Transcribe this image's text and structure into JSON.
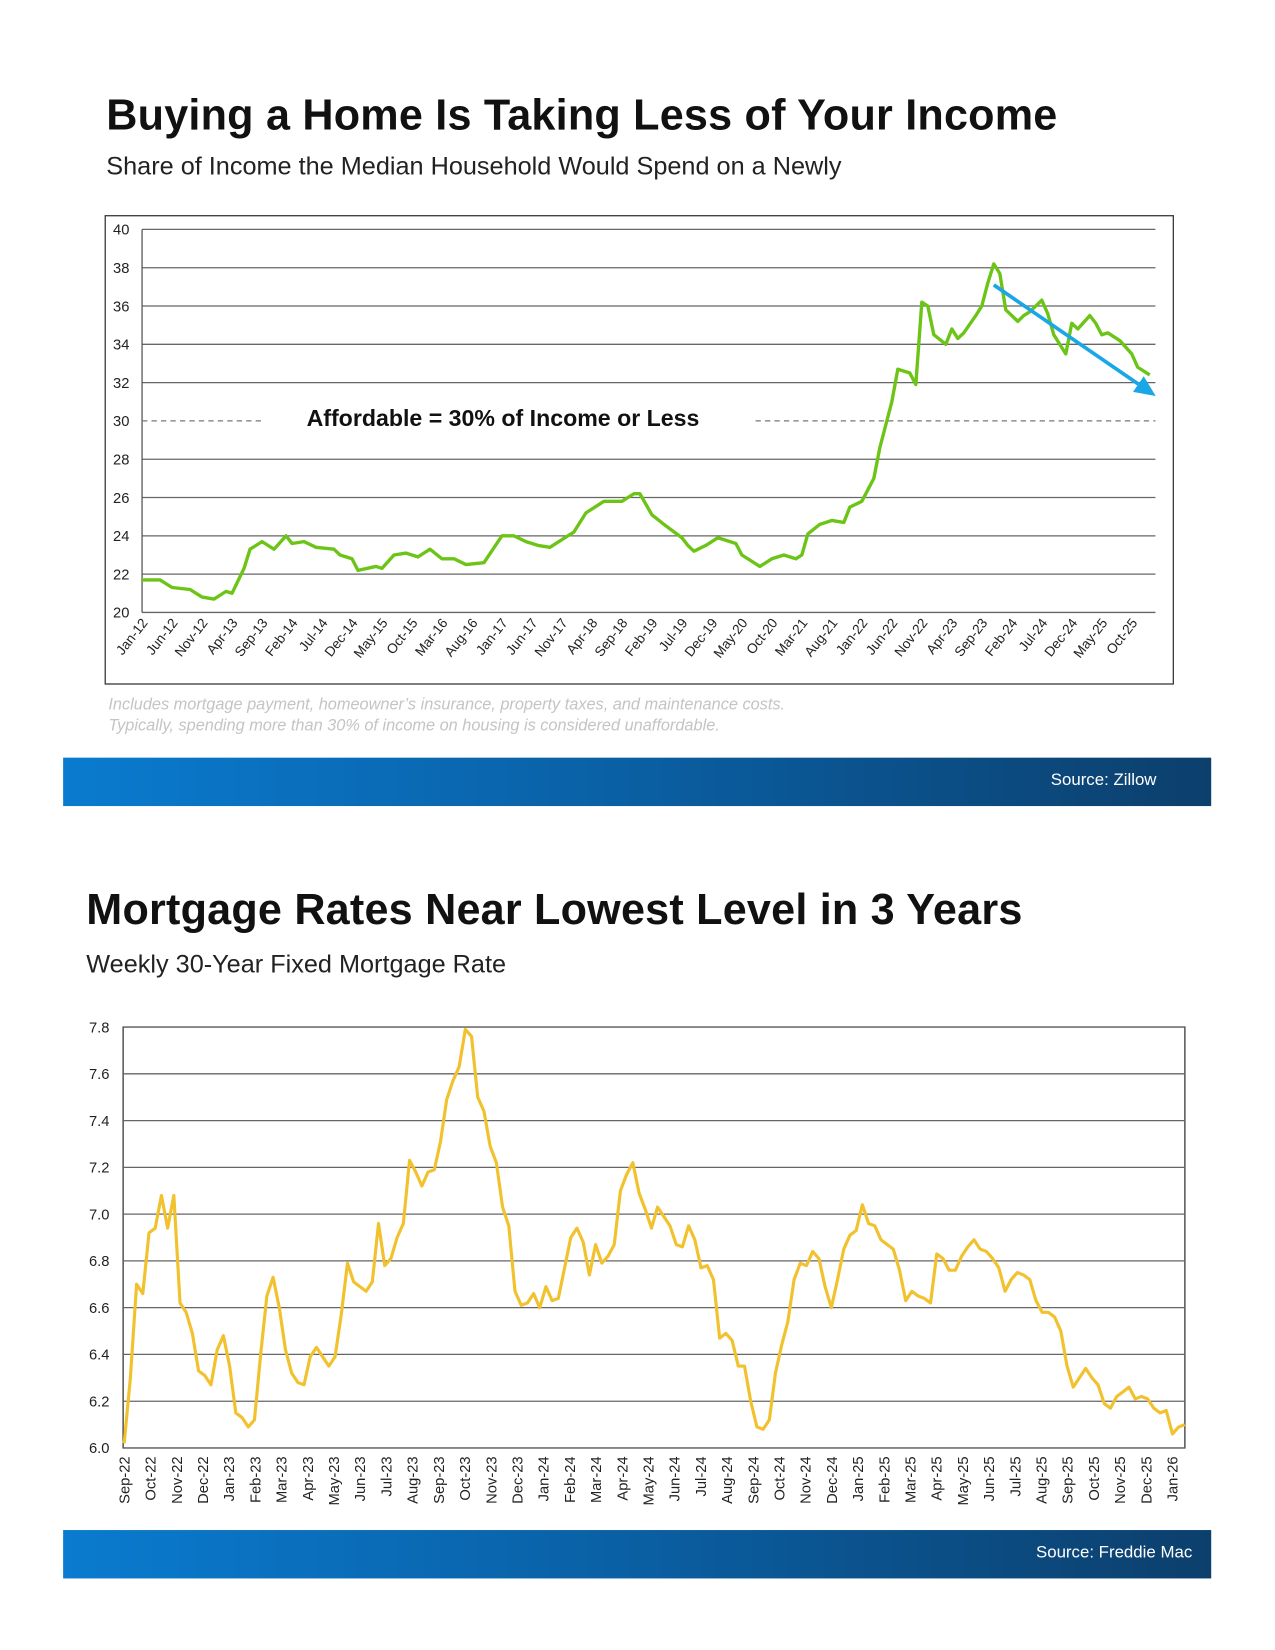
{
  "chart_data": [
    {
      "type": "line",
      "title": "Buying a Home Is Taking Less of Your Income",
      "subtitle": "Share of Income the Median Household Would Spend on a Newly",
      "ylim": [
        20,
        40
      ],
      "y_ticks": [
        "20",
        "22",
        "24",
        "26",
        "28",
        "30",
        "32",
        "34",
        "36",
        "38",
        "40"
      ],
      "x_tick_labels": [
        "Jan-12",
        "Jun-12",
        "Nov-12",
        "Apr-13",
        "Sep-13",
        "Feb-14",
        "Jul-14",
        "Dec-14",
        "May-15",
        "Oct-15",
        "Mar-16",
        "Aug-16",
        "Jan-17",
        "Jun-17",
        "Nov-17",
        "Apr-18",
        "Sep-18",
        "Feb-19",
        "Jul-19",
        "Dec-19",
        "May-20",
        "Oct-20",
        "Mar-21",
        "Aug-21",
        "Jan-22",
        "Jun-22",
        "Nov-22",
        "Apr-23",
        "Sep-23",
        "Feb-24",
        "Jul-24",
        "Dec-24",
        "May-25",
        "Oct-25"
      ],
      "grid": true,
      "line_color": "#6cc417",
      "points": [
        [
          "2012-01",
          21.7
        ],
        [
          "2012-04",
          21.7
        ],
        [
          "2012-06",
          21.3
        ],
        [
          "2012-09",
          21.2
        ],
        [
          "2012-11",
          20.8
        ],
        [
          "2013-01",
          20.7
        ],
        [
          "2013-03",
          21.1
        ],
        [
          "2013-04",
          21.0
        ],
        [
          "2013-06",
          22.3
        ],
        [
          "2013-07",
          23.3
        ],
        [
          "2013-09",
          23.7
        ],
        [
          "2013-11",
          23.3
        ],
        [
          "2014-01",
          24.0
        ],
        [
          "2014-02",
          23.6
        ],
        [
          "2014-04",
          23.7
        ],
        [
          "2014-06",
          23.4
        ],
        [
          "2014-09",
          23.3
        ],
        [
          "2014-10",
          23.0
        ],
        [
          "2014-12",
          22.8
        ],
        [
          "2015-01",
          22.2
        ],
        [
          "2015-04",
          22.4
        ],
        [
          "2015-05",
          22.3
        ],
        [
          "2015-07",
          23.0
        ],
        [
          "2015-09",
          23.1
        ],
        [
          "2015-11",
          22.9
        ],
        [
          "2016-01",
          23.3
        ],
        [
          "2016-03",
          22.8
        ],
        [
          "2016-05",
          22.8
        ],
        [
          "2016-07",
          22.5
        ],
        [
          "2016-10",
          22.6
        ],
        [
          "2017-01",
          24.0
        ],
        [
          "2017-03",
          24.0
        ],
        [
          "2017-05",
          23.7
        ],
        [
          "2017-07",
          23.5
        ],
        [
          "2017-09",
          23.4
        ],
        [
          "2017-12",
          24.0
        ],
        [
          "2018-01",
          24.2
        ],
        [
          "2018-03",
          25.2
        ],
        [
          "2018-06",
          25.8
        ],
        [
          "2018-09",
          25.8
        ],
        [
          "2018-11",
          26.2
        ],
        [
          "2018-12",
          26.2
        ],
        [
          "2019-02",
          25.1
        ],
        [
          "2019-04",
          24.6
        ],
        [
          "2019-07",
          23.9
        ],
        [
          "2019-08",
          23.5
        ],
        [
          "2019-09",
          23.2
        ],
        [
          "2019-11",
          23.5
        ],
        [
          "2020-01",
          23.9
        ],
        [
          "2020-04",
          23.6
        ],
        [
          "2020-05",
          23.0
        ],
        [
          "2020-08",
          22.4
        ],
        [
          "2020-10",
          22.8
        ],
        [
          "2020-12",
          23.0
        ],
        [
          "2021-02",
          22.8
        ],
        [
          "2021-03",
          23.0
        ],
        [
          "2021-04",
          24.1
        ],
        [
          "2021-06",
          24.6
        ],
        [
          "2021-08",
          24.8
        ],
        [
          "2021-10",
          24.7
        ],
        [
          "2021-11",
          25.5
        ],
        [
          "2022-01",
          25.8
        ],
        [
          "2022-03",
          27.0
        ],
        [
          "2022-04",
          28.6
        ],
        [
          "2022-06",
          31.0
        ],
        [
          "2022-07",
          32.7
        ],
        [
          "2022-09",
          32.5
        ],
        [
          "2022-10",
          31.9
        ],
        [
          "2022-11",
          36.2
        ],
        [
          "2022-12",
          36.0
        ],
        [
          "2023-01",
          34.5
        ],
        [
          "2023-03",
          34.0
        ],
        [
          "2023-04",
          34.8
        ],
        [
          "2023-05",
          34.3
        ],
        [
          "2023-06",
          34.6
        ],
        [
          "2023-08",
          35.5
        ],
        [
          "2023-09",
          36.0
        ],
        [
          "2023-10",
          37.2
        ],
        [
          "2023-11",
          38.2
        ],
        [
          "2023-12",
          37.7
        ],
        [
          "2024-01",
          35.8
        ],
        [
          "2024-03",
          35.2
        ],
        [
          "2024-04",
          35.5
        ],
        [
          "2024-05",
          35.7
        ],
        [
          "2024-07",
          36.3
        ],
        [
          "2024-08",
          35.6
        ],
        [
          "2024-09",
          34.5
        ],
        [
          "2024-11",
          33.5
        ],
        [
          "2024-12",
          35.1
        ],
        [
          "2025-01",
          34.8
        ],
        [
          "2025-03",
          35.5
        ],
        [
          "2025-04",
          35.1
        ],
        [
          "2025-05",
          34.5
        ],
        [
          "2025-06",
          34.6
        ],
        [
          "2025-08",
          34.2
        ],
        [
          "2025-10",
          33.5
        ],
        [
          "2025-11",
          32.8
        ],
        [
          "2026-01",
          32.4
        ]
      ],
      "reference_line": {
        "value": 30,
        "style": "dashed",
        "label": "Affordable = 30% of Income or Less"
      },
      "trend_arrow": {
        "from": [
          "2023-11",
          37.1
        ],
        "to": [
          "2026-02",
          31.3
        ],
        "color": "#1aa7e6"
      },
      "notes": [
        "Includes mortgage payment, homeowner’s insurance, property taxes, and maintenance costs.",
        "Typically, spending more than 30% of income on housing is considered unaffordable."
      ],
      "source": "Source: Zillow"
    },
    {
      "type": "line",
      "title": "Mortgage Rates Near Lowest Level in 3 Years",
      "subtitle": "Weekly 30-Year Fixed Mortgage Rate",
      "ylim": [
        6.0,
        7.8
      ],
      "y_ticks": [
        "6.0",
        "6.2",
        "6.4",
        "6.6",
        "6.8",
        "7.0",
        "7.2",
        "7.4",
        "7.6",
        "7.8"
      ],
      "x_tick_labels": [
        "Sep-22",
        "Oct-22",
        "Nov-22",
        "Dec-22",
        "Jan-23",
        "Feb-23",
        "Mar-23",
        "Apr-23",
        "May-23",
        "Jun-23",
        "Jul-23",
        "Aug-23",
        "Sep-23",
        "Oct-23",
        "Nov-23",
        "Dec-23",
        "Jan-24",
        "Feb-24",
        "Mar-24",
        "Apr-24",
        "May-24",
        "Jun-24",
        "Jul-24",
        "Aug-24",
        "Sep-24",
        "Oct-24",
        "Nov-24",
        "Dec-24",
        "Jan-25",
        "Feb-25",
        "Mar-25",
        "Apr-25",
        "May-25",
        "Jun-25",
        "Jul-25",
        "Aug-25",
        "Sep-25",
        "Oct-25",
        "Nov-25",
        "Dec-25",
        "Jan-26"
      ],
      "grid": true,
      "line_color": "#f2c12e",
      "weekly_values": [
        6.02,
        6.3,
        6.7,
        6.66,
        6.92,
        6.94,
        7.08,
        6.94,
        7.08,
        6.62,
        6.58,
        6.49,
        6.33,
        6.31,
        6.27,
        6.42,
        6.48,
        6.35,
        6.15,
        6.13,
        6.09,
        6.12,
        6.4,
        6.65,
        6.73,
        6.6,
        6.42,
        6.32,
        6.28,
        6.27,
        6.39,
        6.43,
        6.39,
        6.35,
        6.39,
        6.57,
        6.79,
        6.71,
        6.69,
        6.67,
        6.71,
        6.96,
        6.78,
        6.81,
        6.9,
        6.96,
        7.23,
        7.18,
        7.12,
        7.18,
        7.19,
        7.31,
        7.49,
        7.57,
        7.63,
        7.79,
        7.76,
        7.5,
        7.44,
        7.29,
        7.22,
        7.03,
        6.95,
        6.67,
        6.61,
        6.62,
        6.66,
        6.6,
        6.69,
        6.63,
        6.64,
        6.77,
        6.9,
        6.94,
        6.88,
        6.74,
        6.87,
        6.79,
        6.82,
        6.87,
        7.1,
        7.17,
        7.22,
        7.09,
        7.02,
        6.94,
        7.03,
        6.99,
        6.95,
        6.87,
        6.86,
        6.95,
        6.89,
        6.77,
        6.78,
        6.72,
        6.47,
        6.49,
        6.46,
        6.35,
        6.35,
        6.2,
        6.09,
        6.08,
        6.12,
        6.32,
        6.44,
        6.54,
        6.72,
        6.79,
        6.78,
        6.84,
        6.81,
        6.69,
        6.6,
        6.72,
        6.85,
        6.91,
        6.93,
        7.04,
        6.96,
        6.95,
        6.89,
        6.87,
        6.85,
        6.76,
        6.63,
        6.67,
        6.65,
        6.64,
        6.62,
        6.83,
        6.81,
        6.76,
        6.76,
        6.82,
        6.86,
        6.89,
        6.85,
        6.84,
        6.81,
        6.77,
        6.67,
        6.72,
        6.75,
        6.74,
        6.72,
        6.63,
        6.58,
        6.58,
        6.56,
        6.5,
        6.35,
        6.26,
        6.3,
        6.34,
        6.3,
        6.27,
        6.19,
        6.17,
        6.22,
        6.24,
        6.26,
        6.21,
        6.22,
        6.21,
        6.17,
        6.15,
        6.16,
        6.06,
        6.09,
        6.1
      ],
      "source": "Source: Freddie Mac"
    }
  ]
}
